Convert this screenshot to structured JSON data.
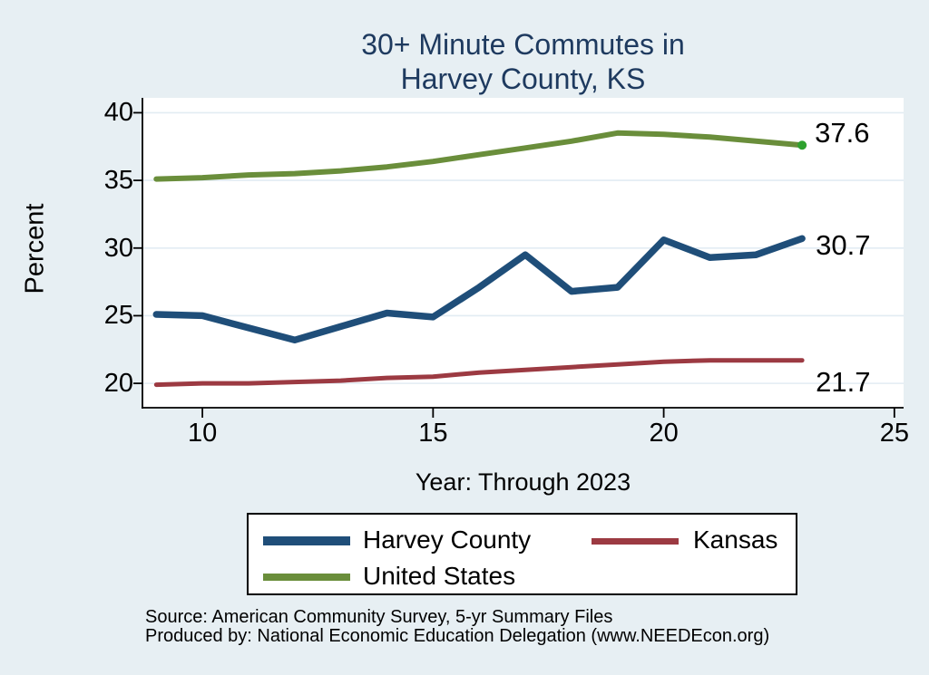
{
  "title": {
    "line1": "30+ Minute Commutes in",
    "line2": "Harvey County, KS"
  },
  "y_axis": {
    "label": "Percent"
  },
  "x_axis": {
    "label": "Year: Through 2023"
  },
  "chart_data": {
    "type": "line",
    "title": "30+ Minute Commutes in Harvey County, KS",
    "xlabel": "Year: Through 2023",
    "ylabel": "Percent",
    "grid": "horizontal",
    "legend_position": "bottom",
    "x": [
      9,
      10,
      11,
      12,
      13,
      14,
      15,
      16,
      17,
      18,
      19,
      20,
      21,
      22,
      23
    ],
    "x_ticks": [
      10,
      15,
      20,
      25
    ],
    "y_ticks": [
      20,
      25,
      30,
      35,
      40
    ],
    "x_range": [
      8.7,
      25.2
    ],
    "y_range": [
      18.2,
      41.1
    ],
    "series": [
      {
        "name": "Harvey County",
        "color": "#1f4e79",
        "line_width": 7.5,
        "values": [
          25.1,
          25.0,
          24.1,
          23.2,
          24.2,
          25.2,
          24.9,
          27.1,
          29.5,
          26.8,
          27.1,
          30.6,
          29.3,
          29.5,
          30.7
        ],
        "end_label": "30.7",
        "end_label_offset": [
          5,
          7
        ]
      },
      {
        "name": "Kansas",
        "color": "#9c3a42",
        "line_width": 5,
        "values": [
          19.9,
          20.0,
          20.0,
          20.1,
          20.2,
          20.4,
          20.5,
          20.8,
          21.0,
          21.2,
          21.4,
          21.6,
          21.7,
          21.7,
          21.7
        ],
        "end_label": "21.7",
        "end_label_offset": [
          5,
          24
        ]
      },
      {
        "name": "United States",
        "color": "#6a8e3b",
        "line_width": 6,
        "values": [
          35.1,
          35.2,
          35.4,
          35.5,
          35.7,
          36.0,
          36.4,
          36.9,
          37.4,
          37.9,
          38.5,
          38.4,
          38.2,
          37.9,
          37.6
        ],
        "end_label": "37.6",
        "end_label_offset": [
          4,
          -14
        ],
        "end_marker_color": "#2ea12e"
      }
    ]
  },
  "legend": {
    "items": [
      "Harvey County",
      "Kansas",
      "United States"
    ]
  },
  "source": {
    "line1": "Source: American Community Survey, 5-yr Summary Files",
    "line2": "Produced by: National Economic Education Delegation (www.NEEDEcon.org)"
  },
  "colors": {
    "background": "#e7eff3",
    "plot_background": "#ffffff",
    "title": "#1e3a5f",
    "gridline": "#e2ecf3",
    "axis": "#000000",
    "harvey_county": "#1f4e79",
    "kansas": "#9c3a42",
    "united_states": "#6a8e3b",
    "end_marker": "#2ea12e"
  }
}
